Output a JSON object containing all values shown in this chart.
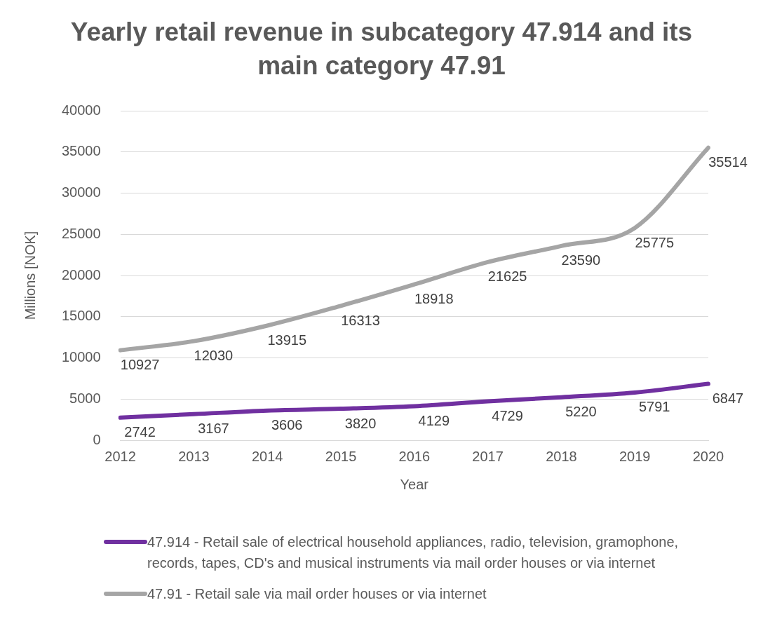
{
  "chart_data": {
    "type": "line",
    "title": "Yearly retail revenue in subcategory 47.914 and its main category 47.91",
    "xlabel": "Year",
    "ylabel": "Millions [NOK]",
    "categories": [
      "2012",
      "2013",
      "2014",
      "2015",
      "2016",
      "2017",
      "2018",
      "2019",
      "2020"
    ],
    "series": [
      {
        "name": "47.914 - Retail sale of electrical household appliances, radio, television, gramophone, records, tapes, CD's and musical instruments via mail order houses or via internet",
        "color": "#7030a0",
        "values": [
          2742,
          3167,
          3606,
          3820,
          4129,
          4729,
          5220,
          5791,
          6847
        ]
      },
      {
        "name": "47.91 - Retail sale via mail order houses or via internet",
        "color": "#a5a5a5",
        "values": [
          10927,
          12030,
          13915,
          16313,
          18918,
          21625,
          23590,
          25775,
          35514
        ]
      }
    ],
    "ylim": [
      0,
      40000
    ],
    "yticks": [
      0,
      5000,
      10000,
      15000,
      20000,
      25000,
      30000,
      35000,
      40000
    ],
    "grid": "y",
    "legend": "bottom",
    "data_labels": true,
    "marker": "none",
    "line_style": "solid"
  }
}
